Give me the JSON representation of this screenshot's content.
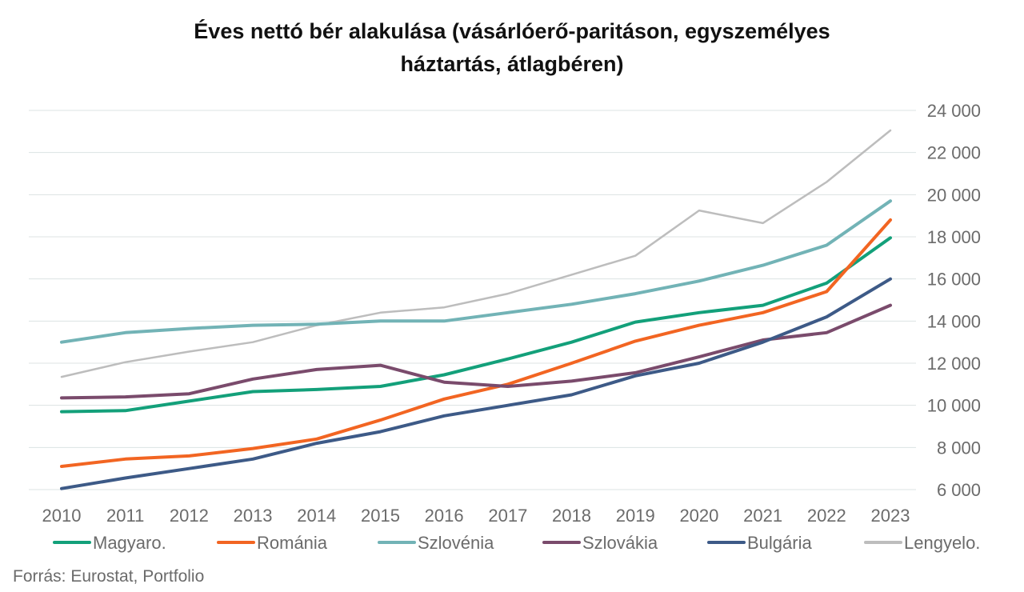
{
  "chart_data": {
    "type": "line",
    "title": "Éves nettó bér alakulása (vásárlóerő-paritáson, egyszemélyes háztartás, átlagbéren)",
    "title_lines": [
      "Éves nettó bér alakulása (vásárlóerő-paritáson, egyszemélyes",
      "háztartás, átlagbéren)"
    ],
    "xlabel": "",
    "ylabel": "",
    "x": [
      "2010",
      "2011",
      "2012",
      "2013",
      "2014",
      "2015",
      "2016",
      "2017",
      "2018",
      "2019",
      "2020",
      "2021",
      "2022",
      "2023"
    ],
    "ylim": [
      6000,
      24000
    ],
    "y_ticks": [
      6000,
      8000,
      10000,
      12000,
      14000,
      16000,
      18000,
      20000,
      22000,
      24000
    ],
    "y_tick_labels": [
      "6 000",
      "8 000",
      "10 000",
      "12 000",
      "14 000",
      "16 000",
      "18 000",
      "20 000",
      "22 000",
      "24 000"
    ],
    "y_axis_side": "right",
    "grid": true,
    "legend_position": "bottom",
    "series": [
      {
        "name": "Magyaro.",
        "color": "#13a07a",
        "values": [
          9700,
          9750,
          10200,
          10650,
          10750,
          10900,
          11450,
          12200,
          13000,
          13950,
          14400,
          14750,
          15800,
          17950
        ]
      },
      {
        "name": "Románia",
        "color": "#f26522",
        "values": [
          7100,
          7450,
          7600,
          7950,
          8400,
          9300,
          10300,
          11000,
          12000,
          13050,
          13800,
          14400,
          15400,
          18800
        ]
      },
      {
        "name": "Szlovénia",
        "color": "#72b3b6",
        "values": [
          13000,
          13450,
          13650,
          13800,
          13850,
          14000,
          14000,
          14400,
          14800,
          15300,
          15900,
          16650,
          17600,
          19700
        ]
      },
      {
        "name": "Szlovákia",
        "color": "#7a4b6c",
        "values": [
          10350,
          10400,
          10550,
          11250,
          11700,
          11900,
          11100,
          10900,
          11150,
          11550,
          12300,
          13100,
          13450,
          14750
        ]
      },
      {
        "name": "Bulgária",
        "color": "#3d5a87",
        "values": [
          6050,
          6550,
          7000,
          7450,
          8200,
          8750,
          9500,
          10000,
          10500,
          11400,
          12000,
          13000,
          14200,
          16000
        ]
      },
      {
        "name": "Lengyelo.",
        "color": "#bdbdbd",
        "values": [
          11350,
          12050,
          12550,
          13000,
          13800,
          14400,
          14650,
          15300,
          16200,
          17100,
          19250,
          18650,
          20600,
          23050
        ]
      }
    ]
  },
  "source": "Forrás: Eurostat, Portfolio"
}
